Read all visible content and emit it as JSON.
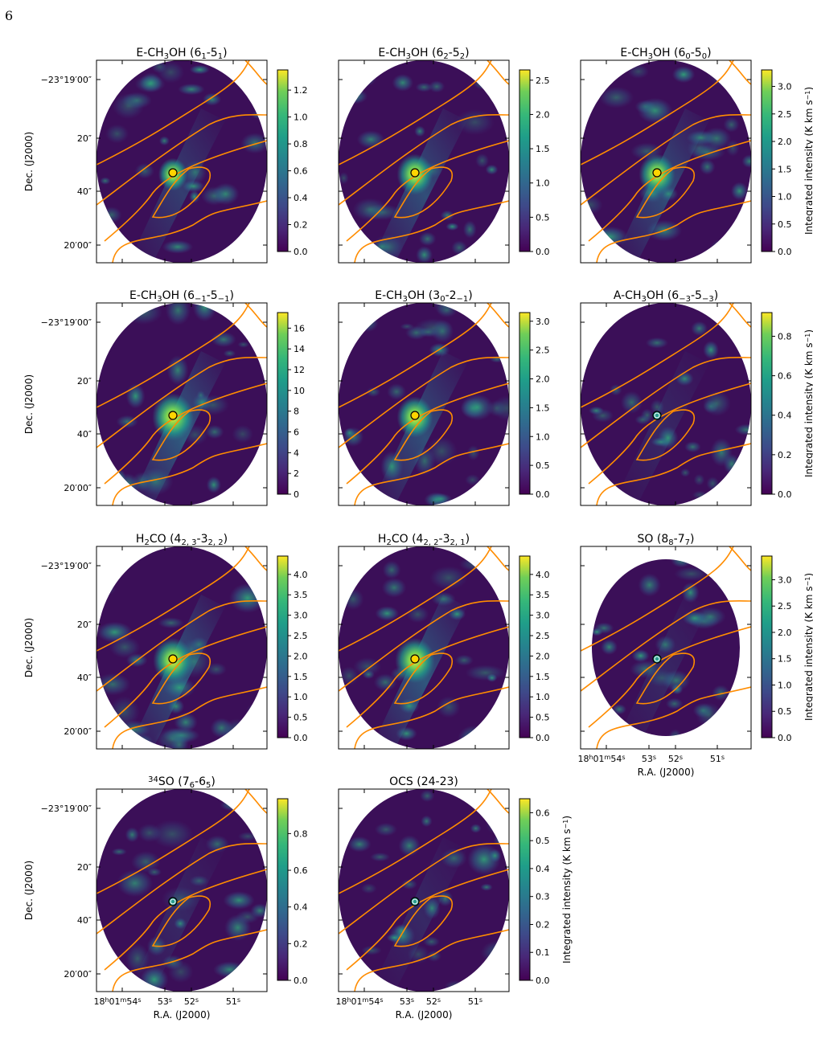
{
  "page_number": "6",
  "axis_labels": {
    "dec": "Dec. (J2000)",
    "ra": "R.A. (J2000)",
    "cbar": "Integrated intensity (K km s",
    "cbar_exp": "−1",
    "cbar_close": ")"
  },
  "dec_ticks": [
    "−23°19′00″",
    "20″",
    "40″",
    "20′00″"
  ],
  "ra_ticks": [
    "18",
    "h",
    "01",
    "m",
    "54",
    "s",
    "53",
    "s",
    "52",
    "s",
    "51",
    "s"
  ],
  "colors": {
    "contour": "#ff8c00",
    "marker_filled": "#ffd400",
    "marker_ring": "#2a9d8f",
    "map_background": "#3b0f58"
  },
  "colormap": "viridis",
  "panels": [
    {
      "id": "p1",
      "title_parts": [
        [
          "E-CH",
          ""
        ],
        [
          "3",
          "sub"
        ],
        [
          "OH (6",
          ""
        ],
        [
          "1",
          "sub"
        ],
        [
          "-5",
          ""
        ],
        [
          "1",
          "sub"
        ],
        [
          ")",
          ""
        ]
      ],
      "cbar_ticks": [
        "0.0",
        "0.2",
        "0.4",
        "0.6",
        "0.8",
        "1.0",
        "1.2"
      ],
      "vmin": 0,
      "vmax": 1.35,
      "dec_labels": true,
      "ra_labels": false,
      "cbar_label": false,
      "marker": "filled",
      "brightness": 0.55
    },
    {
      "id": "p2",
      "title_parts": [
        [
          "E-CH",
          ""
        ],
        [
          "3",
          "sub"
        ],
        [
          "OH (6",
          ""
        ],
        [
          "2",
          "sub"
        ],
        [
          "-5",
          ""
        ],
        [
          "2",
          "sub"
        ],
        [
          ")",
          ""
        ]
      ],
      "cbar_ticks": [
        "0.0",
        "0.5",
        "1.0",
        "1.5",
        "2.0",
        "2.5"
      ],
      "vmin": 0,
      "vmax": 2.65,
      "dec_labels": false,
      "ra_labels": false,
      "cbar_label": false,
      "marker": "filled",
      "brightness": 0.75
    },
    {
      "id": "p3",
      "title_parts": [
        [
          "E-CH",
          ""
        ],
        [
          "3",
          "sub"
        ],
        [
          "OH (6",
          ""
        ],
        [
          "0",
          "sub"
        ],
        [
          "-5",
          ""
        ],
        [
          "0",
          "sub"
        ],
        [
          ")",
          ""
        ]
      ],
      "cbar_ticks": [
        "0.0",
        "0.5",
        "1.0",
        "1.5",
        "2.0",
        "2.5",
        "3.0"
      ],
      "vmin": 0,
      "vmax": 3.3,
      "dec_labels": false,
      "ra_labels": false,
      "cbar_label": true,
      "marker": "filled",
      "brightness": 0.75
    },
    {
      "id": "p4",
      "title_parts": [
        [
          "E-CH",
          ""
        ],
        [
          "3",
          "sub"
        ],
        [
          "OH (6",
          ""
        ],
        [
          "−1",
          "sub"
        ],
        [
          "-5",
          ""
        ],
        [
          "−1",
          "sub"
        ],
        [
          ")",
          ""
        ]
      ],
      "cbar_ticks": [
        "0",
        "2",
        "4",
        "6",
        "8",
        "10",
        "12",
        "14",
        "16"
      ],
      "vmin": 0,
      "vmax": 17.5,
      "dec_labels": true,
      "ra_labels": false,
      "cbar_label": false,
      "marker": "filled",
      "brightness": 0.9
    },
    {
      "id": "p5",
      "title_parts": [
        [
          "E-CH",
          ""
        ],
        [
          "3",
          "sub"
        ],
        [
          "OH (3",
          ""
        ],
        [
          "0",
          "sub"
        ],
        [
          "-2",
          ""
        ],
        [
          "−1",
          "sub"
        ],
        [
          ")",
          ""
        ]
      ],
      "cbar_ticks": [
        "0.0",
        "0.5",
        "1.0",
        "1.5",
        "2.0",
        "2.5",
        "3.0"
      ],
      "vmin": 0,
      "vmax": 3.15,
      "dec_labels": false,
      "ra_labels": false,
      "cbar_label": false,
      "marker": "filled",
      "brightness": 0.75
    },
    {
      "id": "p6",
      "title_parts": [
        [
          "A-CH",
          ""
        ],
        [
          "3",
          "sub"
        ],
        [
          "OH (6",
          ""
        ],
        [
          "−3",
          "sub"
        ],
        [
          "-5",
          ""
        ],
        [
          "−3",
          "sub"
        ],
        [
          ")",
          ""
        ]
      ],
      "cbar_ticks": [
        "0.0",
        "0.2",
        "0.4",
        "0.6",
        "0.8"
      ],
      "vmin": 0,
      "vmax": 0.92,
      "dec_labels": false,
      "ra_labels": false,
      "cbar_label": true,
      "marker": "ring",
      "brightness": 0.3
    },
    {
      "id": "p7",
      "title_parts": [
        [
          "H",
          ""
        ],
        [
          "2",
          "sub"
        ],
        [
          "CO (4",
          ""
        ],
        [
          "2, 3",
          "sub"
        ],
        [
          "-3",
          ""
        ],
        [
          "2, 2",
          "sub"
        ],
        [
          ")",
          ""
        ]
      ],
      "cbar_ticks": [
        "0.0",
        "0.5",
        "1.0",
        "1.5",
        "2.0",
        "2.5",
        "3.0",
        "3.5",
        "4.0"
      ],
      "vmin": 0,
      "vmax": 4.45,
      "dec_labels": true,
      "ra_labels": false,
      "cbar_label": false,
      "marker": "filled",
      "brightness": 0.85
    },
    {
      "id": "p8",
      "title_parts": [
        [
          "H",
          ""
        ],
        [
          "2",
          "sub"
        ],
        [
          "CO (4",
          ""
        ],
        [
          "2, 2",
          "sub"
        ],
        [
          "-3",
          ""
        ],
        [
          "2, 1",
          "sub"
        ],
        [
          ")",
          ""
        ]
      ],
      "cbar_ticks": [
        "0.0",
        "0.5",
        "1.0",
        "1.5",
        "2.0",
        "2.5",
        "3.0",
        "3.5",
        "4.0"
      ],
      "vmin": 0,
      "vmax": 4.45,
      "dec_labels": false,
      "ra_labels": false,
      "cbar_label": false,
      "marker": "filled",
      "brightness": 0.85
    },
    {
      "id": "p9",
      "title_parts": [
        [
          "SO (8",
          ""
        ],
        [
          "8",
          "sub"
        ],
        [
          "-7",
          ""
        ],
        [
          "7",
          "sub"
        ],
        [
          ")",
          ""
        ]
      ],
      "cbar_ticks": [
        "0.0",
        "0.5",
        "1.0",
        "1.5",
        "2.0",
        "2.5",
        "3.0"
      ],
      "vmin": 0,
      "vmax": 3.45,
      "dec_labels": false,
      "ra_labels": true,
      "cbar_label": true,
      "marker": "ring",
      "brightness": 0.3,
      "small": true
    },
    {
      "id": "p10",
      "title_parts": [
        [
          "34",
          "sup"
        ],
        [
          "SO (7",
          ""
        ],
        [
          "6",
          "sub"
        ],
        [
          "-6",
          ""
        ],
        [
          "5",
          "sub"
        ],
        [
          ")",
          ""
        ]
      ],
      "cbar_ticks": [
        "0.0",
        "0.2",
        "0.4",
        "0.6",
        "0.8"
      ],
      "vmin": 0,
      "vmax": 0.99,
      "dec_labels": true,
      "ra_labels": true,
      "cbar_label": false,
      "marker": "ring",
      "brightness": 0.3
    },
    {
      "id": "p11",
      "title_parts": [
        [
          "OCS (24-23)",
          ""
        ]
      ],
      "cbar_ticks": [
        "0.0",
        "0.1",
        "0.2",
        "0.3",
        "0.4",
        "0.5",
        "0.6"
      ],
      "vmin": 0,
      "vmax": 0.65,
      "dec_labels": false,
      "ra_labels": true,
      "cbar_label": true,
      "marker": "ring",
      "brightness": 0.3
    }
  ]
}
